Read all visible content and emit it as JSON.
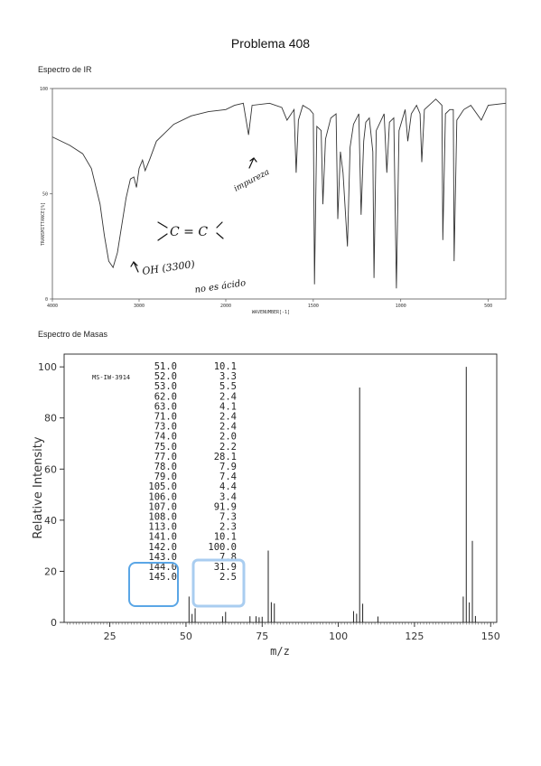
{
  "page": {
    "title": "Problema 408",
    "ir_label": "Espectro de IR",
    "ms_label": "Espectro de Masas"
  },
  "ir": {
    "y_axis_label": "TRANSMITTANCE[%]",
    "x_axis_label": "WAVENUMBER[-1]",
    "y_ticks": [
      "100",
      "50",
      "0"
    ],
    "x_ticks": [
      "4000",
      "3000",
      "2000",
      "1500",
      "1000",
      "500"
    ],
    "annotations": {
      "impurity": "impureza",
      "alkene": "C = C",
      "oh": "OH (3300)",
      "not_acid": "no es ácido"
    }
  },
  "chart_data": [
    {
      "type": "line",
      "title": "Espectro de IR",
      "xlabel": "WAVENUMBER[-1]",
      "ylabel": "TRANSMITTANCE[%]",
      "xlim": [
        4000,
        400
      ],
      "ylim": [
        0,
        100
      ],
      "points": [
        [
          4000,
          77
        ],
        [
          3800,
          73
        ],
        [
          3650,
          69
        ],
        [
          3550,
          62
        ],
        [
          3450,
          45
        ],
        [
          3400,
          30
        ],
        [
          3350,
          18
        ],
        [
          3300,
          15
        ],
        [
          3250,
          22
        ],
        [
          3200,
          35
        ],
        [
          3150,
          48
        ],
        [
          3100,
          57
        ],
        [
          3060,
          58
        ],
        [
          3030,
          53
        ],
        [
          3000,
          62
        ],
        [
          2960,
          66
        ],
        [
          2930,
          61
        ],
        [
          2880,
          66
        ],
        [
          2800,
          75
        ],
        [
          2600,
          83
        ],
        [
          2400,
          87
        ],
        [
          2200,
          89
        ],
        [
          2000,
          90
        ],
        [
          1950,
          92
        ],
        [
          1900,
          93
        ],
        [
          1870,
          78
        ],
        [
          1850,
          92
        ],
        [
          1750,
          93
        ],
        [
          1680,
          91
        ],
        [
          1650,
          85
        ],
        [
          1610,
          90
        ],
        [
          1598,
          60
        ],
        [
          1585,
          85
        ],
        [
          1560,
          92
        ],
        [
          1520,
          90
        ],
        [
          1500,
          88
        ],
        [
          1493,
          7
        ],
        [
          1480,
          82
        ],
        [
          1455,
          80
        ],
        [
          1445,
          45
        ],
        [
          1430,
          76
        ],
        [
          1400,
          86
        ],
        [
          1370,
          88
        ],
        [
          1360,
          38
        ],
        [
          1345,
          70
        ],
        [
          1330,
          60
        ],
        [
          1305,
          25
        ],
        [
          1290,
          72
        ],
        [
          1270,
          83
        ],
        [
          1240,
          88
        ],
        [
          1227,
          40
        ],
        [
          1212,
          75
        ],
        [
          1200,
          84
        ],
        [
          1180,
          86
        ],
        [
          1160,
          70
        ],
        [
          1153,
          10
        ],
        [
          1140,
          80
        ],
        [
          1095,
          88
        ],
        [
          1080,
          60
        ],
        [
          1065,
          84
        ],
        [
          1040,
          86
        ],
        [
          1025,
          5
        ],
        [
          1010,
          80
        ],
        [
          975,
          90
        ],
        [
          960,
          75
        ],
        [
          940,
          88
        ],
        [
          910,
          92
        ],
        [
          890,
          88
        ],
        [
          880,
          65
        ],
        [
          865,
          90
        ],
        [
          800,
          95
        ],
        [
          765,
          92
        ],
        [
          760,
          28
        ],
        [
          745,
          88
        ],
        [
          720,
          90
        ],
        [
          700,
          90
        ],
        [
          695,
          18
        ],
        [
          680,
          85
        ],
        [
          640,
          90
        ],
        [
          600,
          92
        ],
        [
          540,
          85
        ],
        [
          500,
          92
        ],
        [
          400,
          93
        ]
      ]
    },
    {
      "type": "bar",
      "title": "Espectro de Masas",
      "id_label": "MS-IW-3914",
      "xlabel": "m/z",
      "ylabel": "Relative Intensity",
      "xlim": [
        10,
        152
      ],
      "ylim": [
        0,
        105
      ],
      "x_ticks": [
        "25",
        "50",
        "75",
        "100",
        "125",
        "150"
      ],
      "y_ticks": [
        "0",
        "20",
        "40",
        "60",
        "80",
        "100"
      ],
      "peaks": [
        {
          "mz": 51.0,
          "intensity": 10.1
        },
        {
          "mz": 52.0,
          "intensity": 3.3
        },
        {
          "mz": 53.0,
          "intensity": 5.5
        },
        {
          "mz": 62.0,
          "intensity": 2.4
        },
        {
          "mz": 63.0,
          "intensity": 4.1
        },
        {
          "mz": 71.0,
          "intensity": 2.4
        },
        {
          "mz": 73.0,
          "intensity": 2.4
        },
        {
          "mz": 74.0,
          "intensity": 2.0
        },
        {
          "mz": 75.0,
          "intensity": 2.2
        },
        {
          "mz": 77.0,
          "intensity": 28.1
        },
        {
          "mz": 78.0,
          "intensity": 7.9
        },
        {
          "mz": 79.0,
          "intensity": 7.4
        },
        {
          "mz": 105.0,
          "intensity": 4.4
        },
        {
          "mz": 106.0,
          "intensity": 3.4
        },
        {
          "mz": 107.0,
          "intensity": 91.9
        },
        {
          "mz": 108.0,
          "intensity": 7.3
        },
        {
          "mz": 113.0,
          "intensity": 2.3
        },
        {
          "mz": 141.0,
          "intensity": 10.1
        },
        {
          "mz": 142.0,
          "intensity": 100.0
        },
        {
          "mz": 143.0,
          "intensity": 7.8
        },
        {
          "mz": 144.0,
          "intensity": 31.9
        },
        {
          "mz": 145.0,
          "intensity": 2.5
        }
      ],
      "table": {
        "mz": [
          "51.0",
          "52.0",
          "53.0",
          "62.0",
          "63.0",
          "71.0",
          "73.0",
          "74.0",
          "75.0",
          "77.0",
          "78.0",
          "79.0",
          "105.0",
          "106.0",
          "107.0",
          "108.0",
          "113.0",
          "141.0",
          "142.0",
          "143.0",
          "144.0",
          "145.0"
        ],
        "intensity": [
          "10.1",
          "3.3",
          "5.5",
          "2.4",
          "4.1",
          "2.4",
          "2.4",
          "2.0",
          "2.2",
          "28.1",
          "7.9",
          "7.4",
          "4.4",
          "3.4",
          "91.9",
          "7.3",
          "2.3",
          "10.1",
          "100.0",
          "7.8",
          "31.9",
          "2.5"
        ]
      }
    }
  ],
  "colors": {
    "ink": "#222222",
    "highlight": "#5aa6e6"
  }
}
